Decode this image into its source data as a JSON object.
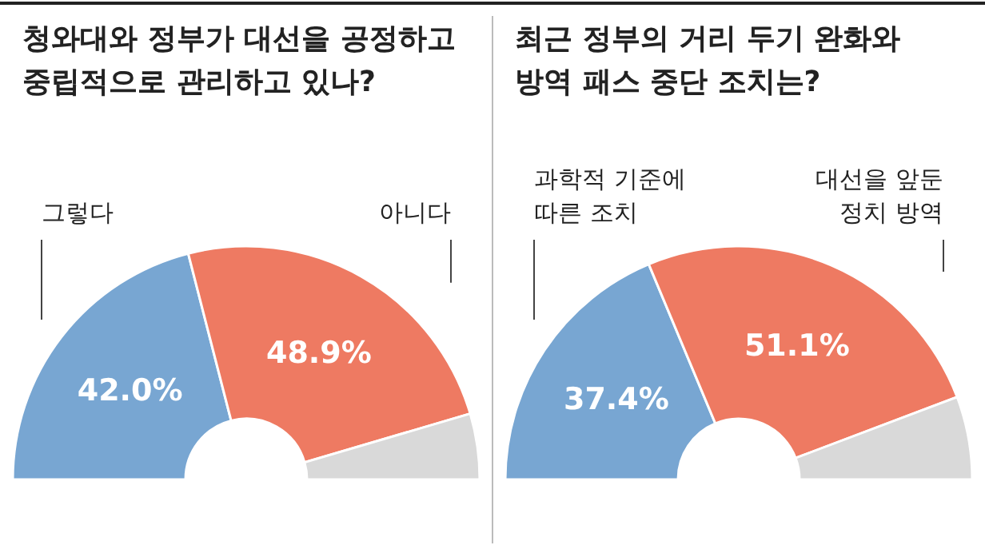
{
  "chart_data": [
    {
      "type": "donut",
      "title": "청와대와 정부가 대선을 공정하고 중립적으로 관리하고 있나?",
      "categories": [
        "그렇다",
        "아니다",
        null
      ],
      "values": [
        42.0,
        48.9,
        9.1
      ],
      "colors": [
        "#78a6d2",
        "#ee7a62",
        "#d9d9d9"
      ],
      "value_labels": [
        "42.0%",
        "48.9%",
        null
      ]
    },
    {
      "type": "donut",
      "title": "최근 정부의 거리 두기 완화와 방역 패스 중단 조치는?",
      "categories": [
        "과학적 기준에 따른 조치",
        "대선을 앞둔 정치 방역",
        null
      ],
      "values": [
        37.4,
        51.1,
        11.5
      ],
      "colors": [
        "#78a6d2",
        "#ee7a62",
        "#d9d9d9"
      ],
      "value_labels": [
        "37.4%",
        "51.1%",
        null
      ]
    }
  ]
}
